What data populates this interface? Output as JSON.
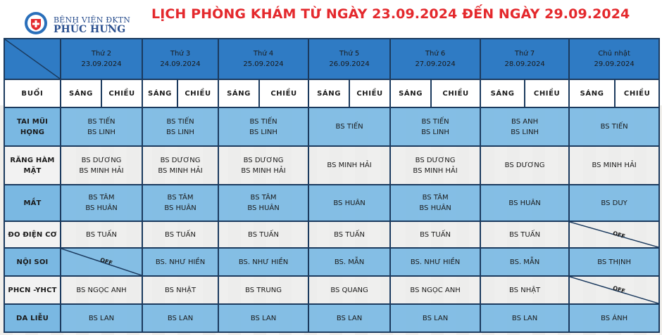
{
  "hospital": {
    "line1": "BỆNH VIỆN ĐKTN",
    "line2": "PHÚC HƯNG"
  },
  "title": "LỊCH PHÒNG KHÁM TỪ NGÀY 23.09.2024 ĐẾN NGÀY 29.09.2024",
  "days": [
    {
      "name": "Thứ 2",
      "date": "23.09.2024"
    },
    {
      "name": "Thứ 3",
      "date": "24.09.2024"
    },
    {
      "name": "Thứ 4",
      "date": "25.09.2024"
    },
    {
      "name": "Thứ 5",
      "date": "26.09.2024"
    },
    {
      "name": "Thứ 6",
      "date": "27.09.2024"
    },
    {
      "name": "Thứ 7",
      "date": "28.09.2024"
    },
    {
      "name": "Chủ nhật",
      "date": "29.09.2024"
    }
  ],
  "session_label": "BUỔI",
  "morning": "SÁNG",
  "afternoon": "CHIỀU",
  "off": "OFF",
  "rows": [
    {
      "label": [
        "TAI MŨI",
        "HỌNG"
      ],
      "cells": [
        [
          "BS TIẾN",
          "BS LINH"
        ],
        [
          "BS TIẾN",
          "BS LINH"
        ],
        [
          "BS TIẾN",
          "BS LINH"
        ],
        [
          "BS TIẾN"
        ],
        [
          "BS TIẾN",
          "BS LINH"
        ],
        [
          "BS ANH",
          "BS LINH"
        ],
        [
          "BS TIẾN"
        ]
      ]
    },
    {
      "label": [
        "RĂNG HÀM",
        "MẶT"
      ],
      "cells": [
        [
          "BS DƯƠNG",
          "BS MINH HẢI"
        ],
        [
          "BS DƯƠNG",
          "BS MINH HẢI"
        ],
        [
          "BS DƯƠNG",
          "BS MINH HẢI"
        ],
        [
          "BS MINH HẢI"
        ],
        [
          "BS DƯƠNG",
          "BS MINH HẢI"
        ],
        [
          "BS DƯƠNG"
        ],
        [
          "BS MINH HẢI"
        ]
      ]
    },
    {
      "label": [
        "MẮT"
      ],
      "cells": [
        [
          "BS TÂM",
          "BS HUÂN"
        ],
        [
          "BS TÂM",
          "BS HUÂN"
        ],
        [
          "BS TÂM",
          "BS HUÂN"
        ],
        [
          "BS HUÂN"
        ],
        [
          "BS TÂM",
          "BS HUÂN"
        ],
        [
          "BS HUÂN"
        ],
        [
          "BS DUY"
        ]
      ]
    },
    {
      "label": [
        "ĐO ĐIỆN CƠ"
      ],
      "cells": [
        [
          "BS TUẤN"
        ],
        [
          "BS TUẤN"
        ],
        [
          "BS TUẤN"
        ],
        [
          "BS TUẤN"
        ],
        [
          "BS TUẤN"
        ],
        [
          "BS TUẤN"
        ],
        [
          "OFF"
        ]
      ]
    },
    {
      "label": [
        "NỘI SOI"
      ],
      "cells": [
        [
          "OFF"
        ],
        [
          "BS. NHƯ HIỀN"
        ],
        [
          "BS. NHƯ HIỀN"
        ],
        [
          "BS. MẪN"
        ],
        [
          "BS. NHƯ HIỀN"
        ],
        [
          "BS. MẪN"
        ],
        [
          "BS THỊNH"
        ]
      ]
    },
    {
      "label": [
        "PHCN -YHCT"
      ],
      "cells": [
        [
          "BS NGỌC ANH"
        ],
        [
          "BS NHẬT"
        ],
        [
          "BS TRUNG"
        ],
        [
          "BS QUANG"
        ],
        [
          "BS NGỌC ANH"
        ],
        [
          "BS NHẬT"
        ],
        [
          "OFF"
        ]
      ]
    },
    {
      "label": [
        "DA LIỄU"
      ],
      "cells": [
        [
          "BS LAN"
        ],
        [
          "BS LAN"
        ],
        [
          "BS LAN"
        ],
        [
          "BS LAN"
        ],
        [
          "BS LAN"
        ],
        [
          "BS LAN"
        ],
        [
          "BS ÁNH"
        ]
      ]
    }
  ],
  "colors": {
    "title": "#e4292d",
    "header_blue": "#2f7bc4",
    "row_blue": "#7dbae4",
    "border": "#1b3a5e",
    "brand": "#2a4f8f"
  }
}
